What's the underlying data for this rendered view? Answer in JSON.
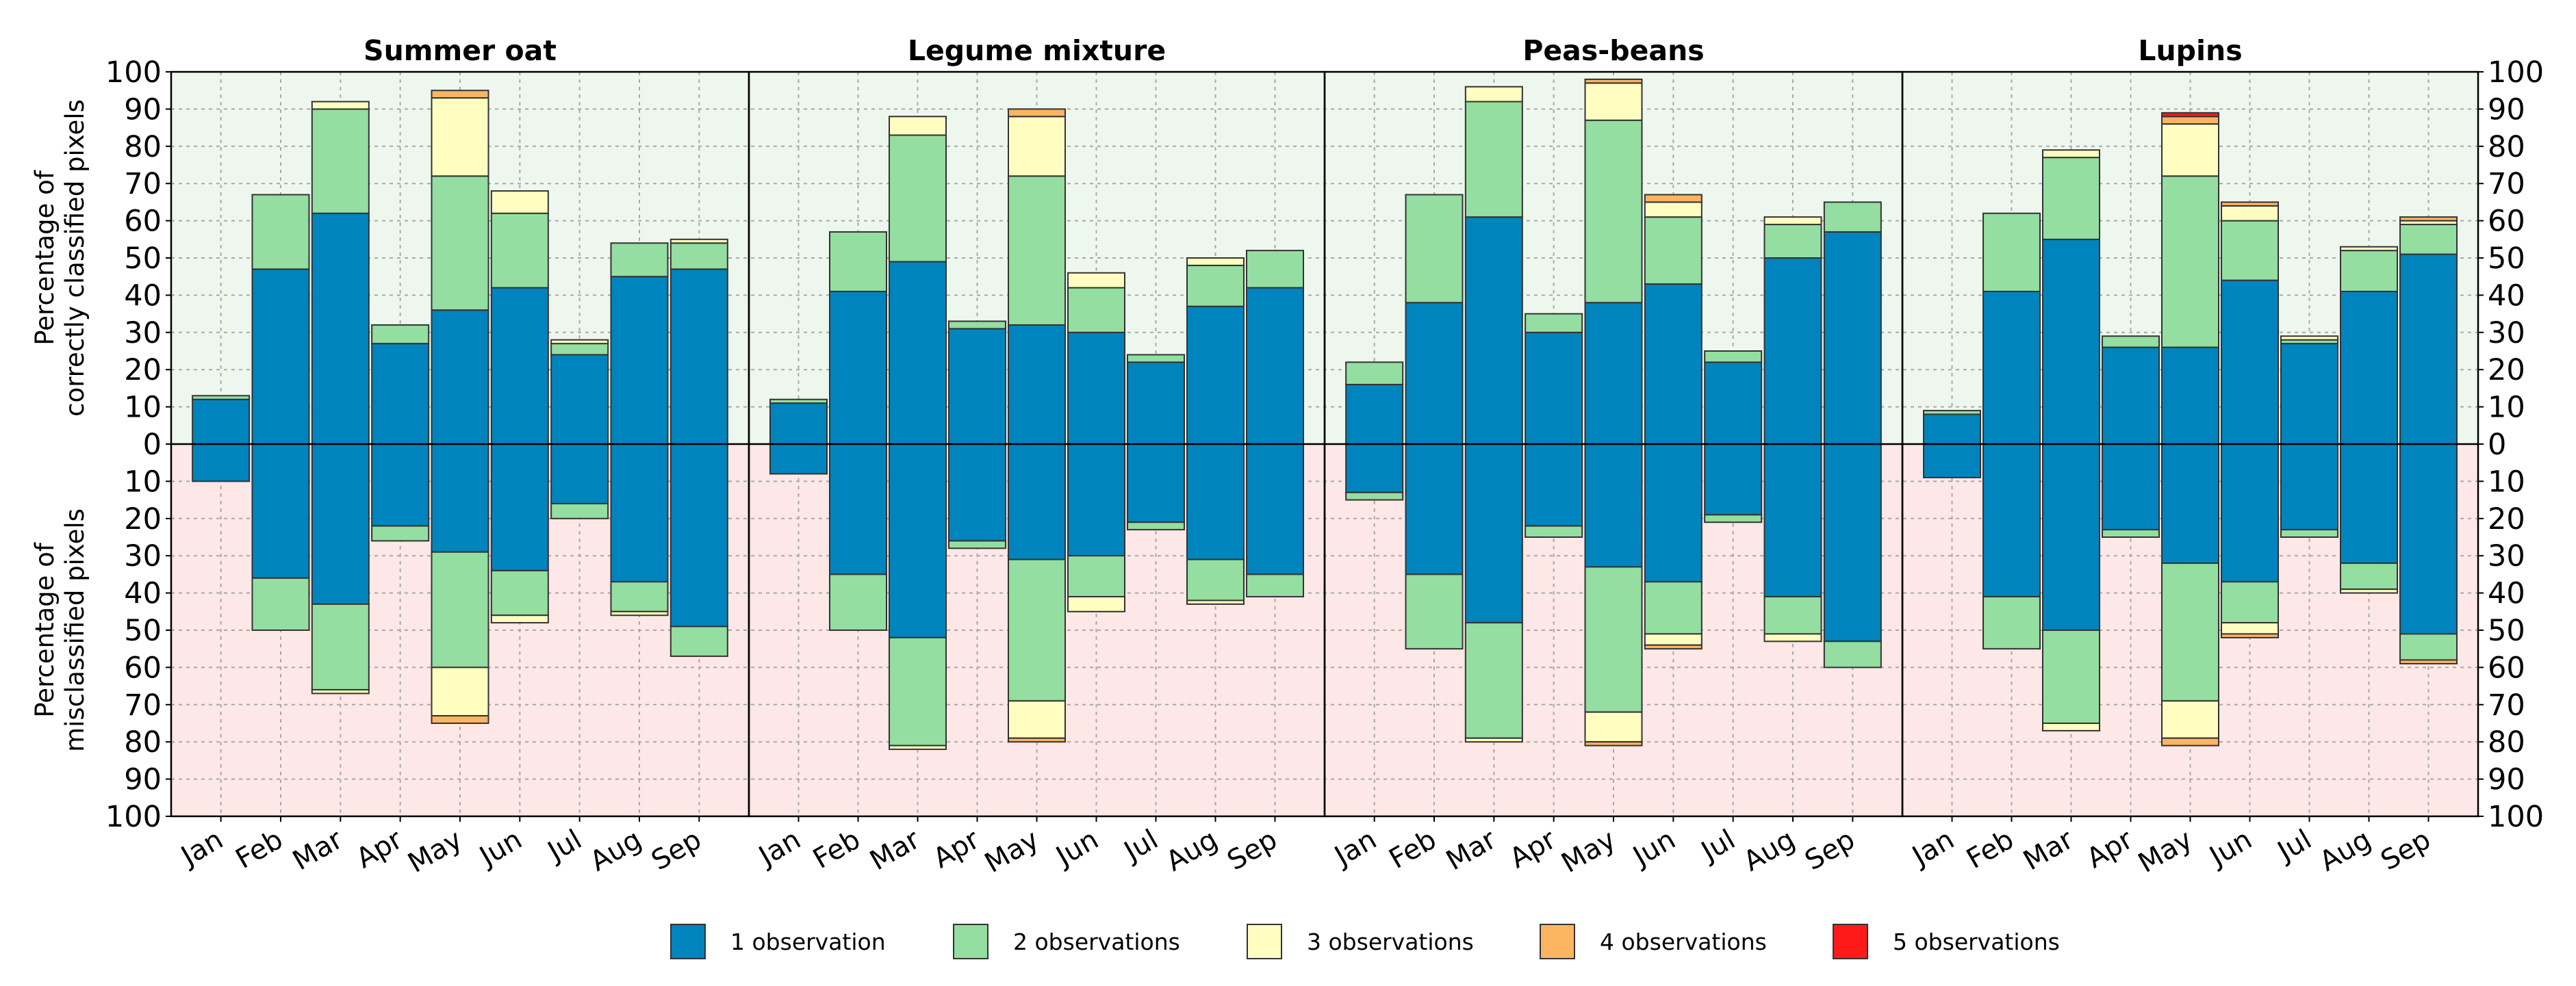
{
  "chart_data": {
    "type": "bar",
    "layout": "diverging-stacked",
    "categories": [
      "Jan",
      "Feb",
      "Mar",
      "Apr",
      "May",
      "Jun",
      "Jul",
      "Aug",
      "Sep"
    ],
    "ylim": [
      -100,
      100
    ],
    "yticks": [
      100,
      90,
      80,
      70,
      60,
      50,
      40,
      30,
      20,
      10,
      0,
      10,
      20,
      30,
      40,
      50,
      60,
      70,
      80,
      90,
      100
    ],
    "ylabel_top": [
      "Percentage of",
      "correctly classified pixels"
    ],
    "ylabel_bottom": [
      "Percentage of",
      "misclassified pixels"
    ],
    "grid": true,
    "series_colors": [
      "#0084bd",
      "#93dea0",
      "#fffec0",
      "#fdb462",
      "#ff1a1a"
    ],
    "legend": {
      "position": "bottom-center",
      "entries": [
        "1 observation",
        "2 observations",
        "3 observations",
        "4 observations",
        "5 observations"
      ]
    },
    "panels": [
      {
        "title": "Summer oat",
        "positive": [
          [
            12,
            1,
            0,
            0,
            0
          ],
          [
            47,
            20,
            0,
            0,
            0
          ],
          [
            62,
            28,
            2,
            0,
            0
          ],
          [
            27,
            5,
            0,
            0,
            0
          ],
          [
            36,
            36,
            21,
            2,
            0
          ],
          [
            42,
            20,
            6,
            0,
            0
          ],
          [
            24,
            3,
            1,
            0,
            0
          ],
          [
            45,
            9,
            0,
            0,
            0
          ],
          [
            47,
            7,
            1,
            0,
            0
          ]
        ],
        "negative": [
          [
            10,
            0,
            0,
            0,
            0
          ],
          [
            36,
            14,
            0,
            0,
            0
          ],
          [
            43,
            23,
            1,
            0,
            0
          ],
          [
            22,
            4,
            0,
            0,
            0
          ],
          [
            29,
            31,
            13,
            2,
            0
          ],
          [
            34,
            12,
            2,
            0,
            0
          ],
          [
            16,
            4,
            0,
            0,
            0
          ],
          [
            37,
            8,
            1,
            0,
            0
          ],
          [
            49,
            8,
            0,
            0,
            0
          ]
        ]
      },
      {
        "title": "Legume mixture",
        "positive": [
          [
            11,
            1,
            0,
            0,
            0
          ],
          [
            41,
            16,
            0,
            0,
            0
          ],
          [
            49,
            34,
            5,
            0,
            0
          ],
          [
            31,
            2,
            0,
            0,
            0
          ],
          [
            32,
            40,
            16,
            2,
            0
          ],
          [
            30,
            12,
            4,
            0,
            0
          ],
          [
            22,
            2,
            0,
            0,
            0
          ],
          [
            37,
            11,
            2,
            0,
            0
          ],
          [
            42,
            10,
            0,
            0,
            0
          ]
        ],
        "negative": [
          [
            8,
            0,
            0,
            0,
            0
          ],
          [
            35,
            15,
            0,
            0,
            0
          ],
          [
            52,
            29,
            1,
            0,
            0
          ],
          [
            26,
            2,
            0,
            0,
            0
          ],
          [
            31,
            38,
            10,
            1,
            0
          ],
          [
            30,
            11,
            4,
            0,
            0
          ],
          [
            21,
            2,
            0,
            0,
            0
          ],
          [
            31,
            11,
            1,
            0,
            0
          ],
          [
            35,
            6,
            0,
            0,
            0
          ]
        ]
      },
      {
        "title": "Peas-beans",
        "positive": [
          [
            16,
            6,
            0,
            0,
            0
          ],
          [
            38,
            29,
            0,
            0,
            0
          ],
          [
            61,
            31,
            4,
            0,
            0
          ],
          [
            30,
            5,
            0,
            0,
            0
          ],
          [
            38,
            49,
            10,
            1,
            0
          ],
          [
            43,
            18,
            4,
            2,
            0
          ],
          [
            22,
            3,
            0,
            0,
            0
          ],
          [
            50,
            9,
            2,
            0,
            0
          ],
          [
            57,
            8,
            0,
            0,
            0
          ]
        ],
        "negative": [
          [
            13,
            2,
            0,
            0,
            0
          ],
          [
            35,
            20,
            0,
            0,
            0
          ],
          [
            48,
            31,
            1,
            0,
            0
          ],
          [
            22,
            3,
            0,
            0,
            0
          ],
          [
            33,
            39,
            8,
            1,
            0
          ],
          [
            37,
            14,
            3,
            1,
            0
          ],
          [
            19,
            2,
            0,
            0,
            0
          ],
          [
            41,
            10,
            2,
            0,
            0
          ],
          [
            53,
            7,
            0,
            0,
            0
          ]
        ]
      },
      {
        "title": "Lupins",
        "positive": [
          [
            8,
            1,
            0,
            0,
            0
          ],
          [
            41,
            21,
            0,
            0,
            0
          ],
          [
            55,
            22,
            2,
            0,
            0
          ],
          [
            26,
            3,
            0,
            0,
            0
          ],
          [
            26,
            46,
            14,
            2,
            1
          ],
          [
            44,
            16,
            4,
            1,
            0
          ],
          [
            27,
            1,
            1,
            0,
            0
          ],
          [
            41,
            11,
            1,
            0,
            0
          ],
          [
            51,
            8,
            1,
            1,
            0
          ]
        ],
        "negative": [
          [
            9,
            0,
            0,
            0,
            0
          ],
          [
            41,
            14,
            0,
            0,
            0
          ],
          [
            50,
            25,
            2,
            0,
            0
          ],
          [
            23,
            2,
            0,
            0,
            0
          ],
          [
            32,
            37,
            10,
            2,
            0
          ],
          [
            37,
            11,
            3,
            1,
            0
          ],
          [
            23,
            2,
            0,
            0,
            0
          ],
          [
            32,
            7,
            1,
            0,
            0
          ],
          [
            51,
            7,
            0,
            1,
            0
          ]
        ]
      }
    ]
  }
}
